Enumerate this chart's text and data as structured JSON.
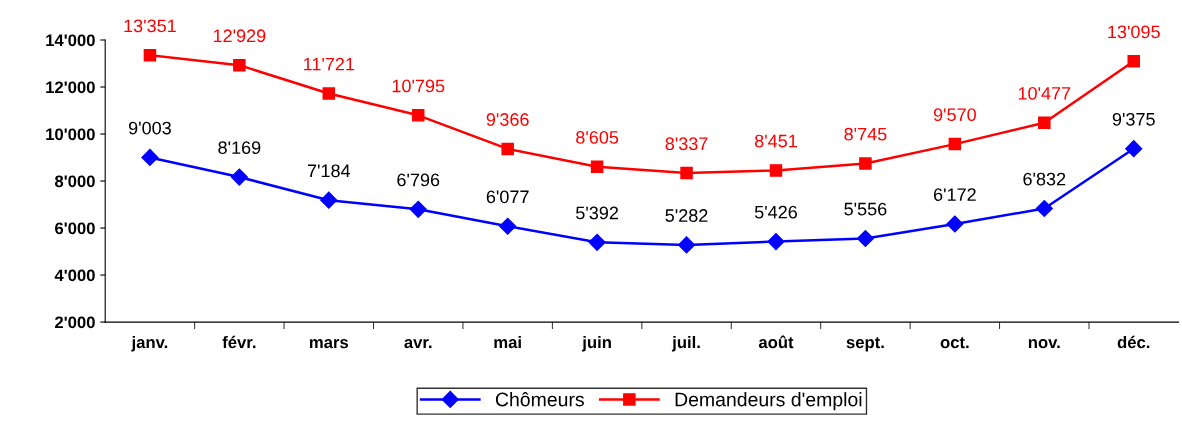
{
  "chart_data": {
    "type": "line",
    "categories": [
      "janv.",
      "févr.",
      "mars",
      "avr.",
      "mai",
      "juin",
      "juil.",
      "août",
      "sept.",
      "oct.",
      "nov.",
      "déc."
    ],
    "series": [
      {
        "name": "Chômeurs",
        "color": "#0000ff",
        "marker": "diamond",
        "values": [
          9003,
          8169,
          7184,
          6796,
          6077,
          5392,
          5282,
          5426,
          5556,
          6172,
          6832,
          9375
        ],
        "value_labels": [
          "9'003",
          "8'169",
          "7'184",
          "6'796",
          "6'077",
          "5'392",
          "5'282",
          "5'426",
          "5'556",
          "6'172",
          "6'832",
          "9'375"
        ]
      },
      {
        "name": "Demandeurs d'emploi",
        "color": "#ff0000",
        "marker": "square",
        "values": [
          13351,
          12929,
          11721,
          10795,
          9366,
          8605,
          8337,
          8451,
          8745,
          9570,
          10477,
          13095
        ],
        "value_labels": [
          "13'351",
          "12'929",
          "11'721",
          "10'795",
          "9'366",
          "8'605",
          "8'337",
          "8'451",
          "8'745",
          "9'570",
          "10'477",
          "13'095"
        ]
      }
    ],
    "ylim": [
      2000,
      14000
    ],
    "yticks": [
      {
        "value": 2000,
        "label": "2'000"
      },
      {
        "value": 4000,
        "label": "4'000"
      },
      {
        "value": 6000,
        "label": "6'000"
      },
      {
        "value": 8000,
        "label": "8'000"
      },
      {
        "value": 10000,
        "label": "10'000"
      },
      {
        "value": 12000,
        "label": "12'000"
      },
      {
        "value": 14000,
        "label": "14'000"
      }
    ],
    "grid": false,
    "legend": "bottom",
    "line_style": "solid"
  }
}
